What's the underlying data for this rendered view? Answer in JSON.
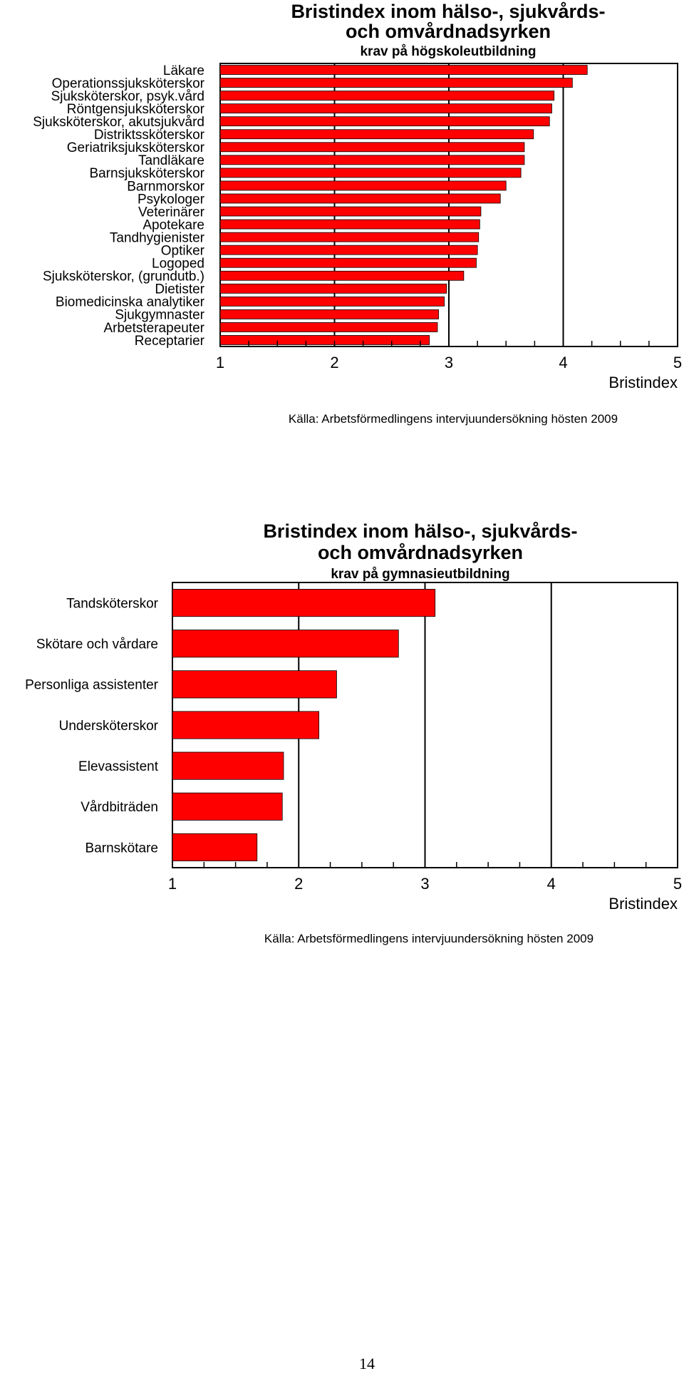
{
  "chart_data": [
    {
      "type": "bar",
      "orientation": "horizontal",
      "title": "Bristindex inom hälso-, sjukvårds- och omvårdnadsyrken",
      "title_lines": [
        "Bristindex inom hälso-, sjukvårds-",
        "och omvårdnadsyrken"
      ],
      "subtitle": "krav på högskoleutbildning",
      "xlabel": "Bristindex",
      "xlim": [
        1,
        5
      ],
      "xticks": [
        "1",
        "2",
        "3",
        "4",
        "5"
      ],
      "gridlines": [
        2,
        3,
        4
      ],
      "bar_color": "#ff0000",
      "source": "Källa: Arbetsförmedlingens intervjuundersökning hösten 2009",
      "categories": [
        "Läkare",
        "Operationssjuksköterskor",
        "Sjuksköterskor, psyk.vård",
        "Röntgensjuksköterskor",
        "Sjuksköterskor, akutsjukvård",
        "Distriktssköterskor",
        "Geriatriksjuksköterskor",
        "Tandläkare",
        "Barnsjuksköterskor",
        "Barnmorskor",
        "Psykologer",
        "Veterinärer",
        "Apotekare",
        "Tandhygienister",
        "Optiker",
        "Logoped",
        "Sjuksköterskor, (grundutb.)",
        "Dietister",
        "Biomedicinska analytiker",
        "Sjukgymnaster",
        "Arbetsterapeuter",
        "Receptarier"
      ],
      "values": [
        4.21,
        4.08,
        3.92,
        3.9,
        3.88,
        3.74,
        3.66,
        3.66,
        3.63,
        3.5,
        3.45,
        3.28,
        3.27,
        3.26,
        3.25,
        3.24,
        3.13,
        2.98,
        2.96,
        2.91,
        2.9,
        2.83
      ]
    },
    {
      "type": "bar",
      "orientation": "horizontal",
      "title": "Bristindex inom hälso-, sjukvårds- och omvårdnadsyrken",
      "title_lines": [
        "Bristindex inom hälso-, sjukvårds-",
        "och omvårdnadsyrken"
      ],
      "subtitle": "krav på gymnasieutbildning",
      "xlabel": "Bristindex",
      "xlim": [
        1,
        5
      ],
      "xticks": [
        "1",
        "2",
        "3",
        "4",
        "5"
      ],
      "gridlines": [
        2,
        3,
        4
      ],
      "bar_color": "#ff0000",
      "source": "Källa: Arbetsförmedlingens intervjuundersökning hösten 2009",
      "categories": [
        "Tandsköterskor",
        "Skötare och vårdare",
        "Personliga assistenter",
        "Undersköterskor",
        "Elevassistent",
        "Vårdbiträden",
        "Barnskötare"
      ],
      "values": [
        3.08,
        2.79,
        2.3,
        2.16,
        1.88,
        1.87,
        1.67
      ]
    }
  ],
  "page": {
    "number": "14"
  }
}
